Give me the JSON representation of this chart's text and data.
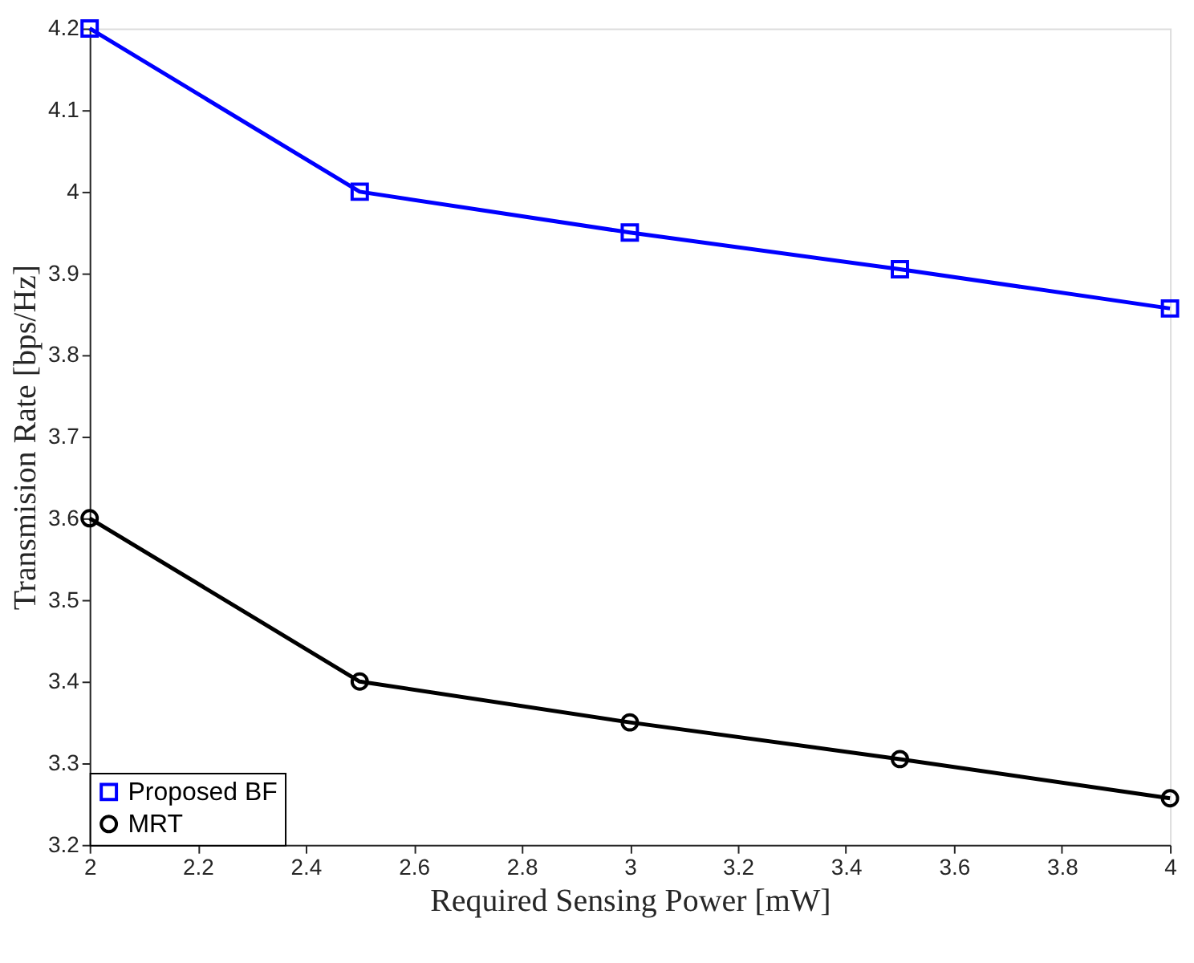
{
  "chart_data": {
    "type": "line",
    "xlabel": "Required Sensing Power [mW]",
    "ylabel": "Transmision Rate [bps/Hz]",
    "x": [
      2,
      2.5,
      3,
      3.5,
      4
    ],
    "series": [
      {
        "name": "Proposed BF",
        "color": "#0000ff",
        "marker": "square",
        "values": [
          4.2,
          4.0,
          3.95,
          3.905,
          3.857
        ]
      },
      {
        "name": "MRT",
        "color": "#000000",
        "marker": "circle",
        "values": [
          3.6,
          3.4,
          3.35,
          3.305,
          3.257
        ]
      }
    ],
    "xlim": [
      2,
      4
    ],
    "xticks": [
      2,
      2.2,
      2.4,
      2.6,
      2.8,
      3,
      3.2,
      3.4,
      3.6,
      3.8,
      4
    ],
    "ylim": [
      3.2,
      4.2
    ],
    "yticks": [
      3.2,
      3.3,
      3.4,
      3.5,
      3.6,
      3.7,
      3.8,
      3.9,
      4,
      4.1,
      4.2
    ],
    "grid": false,
    "legend": "bottom left",
    "line_style": "solid"
  }
}
